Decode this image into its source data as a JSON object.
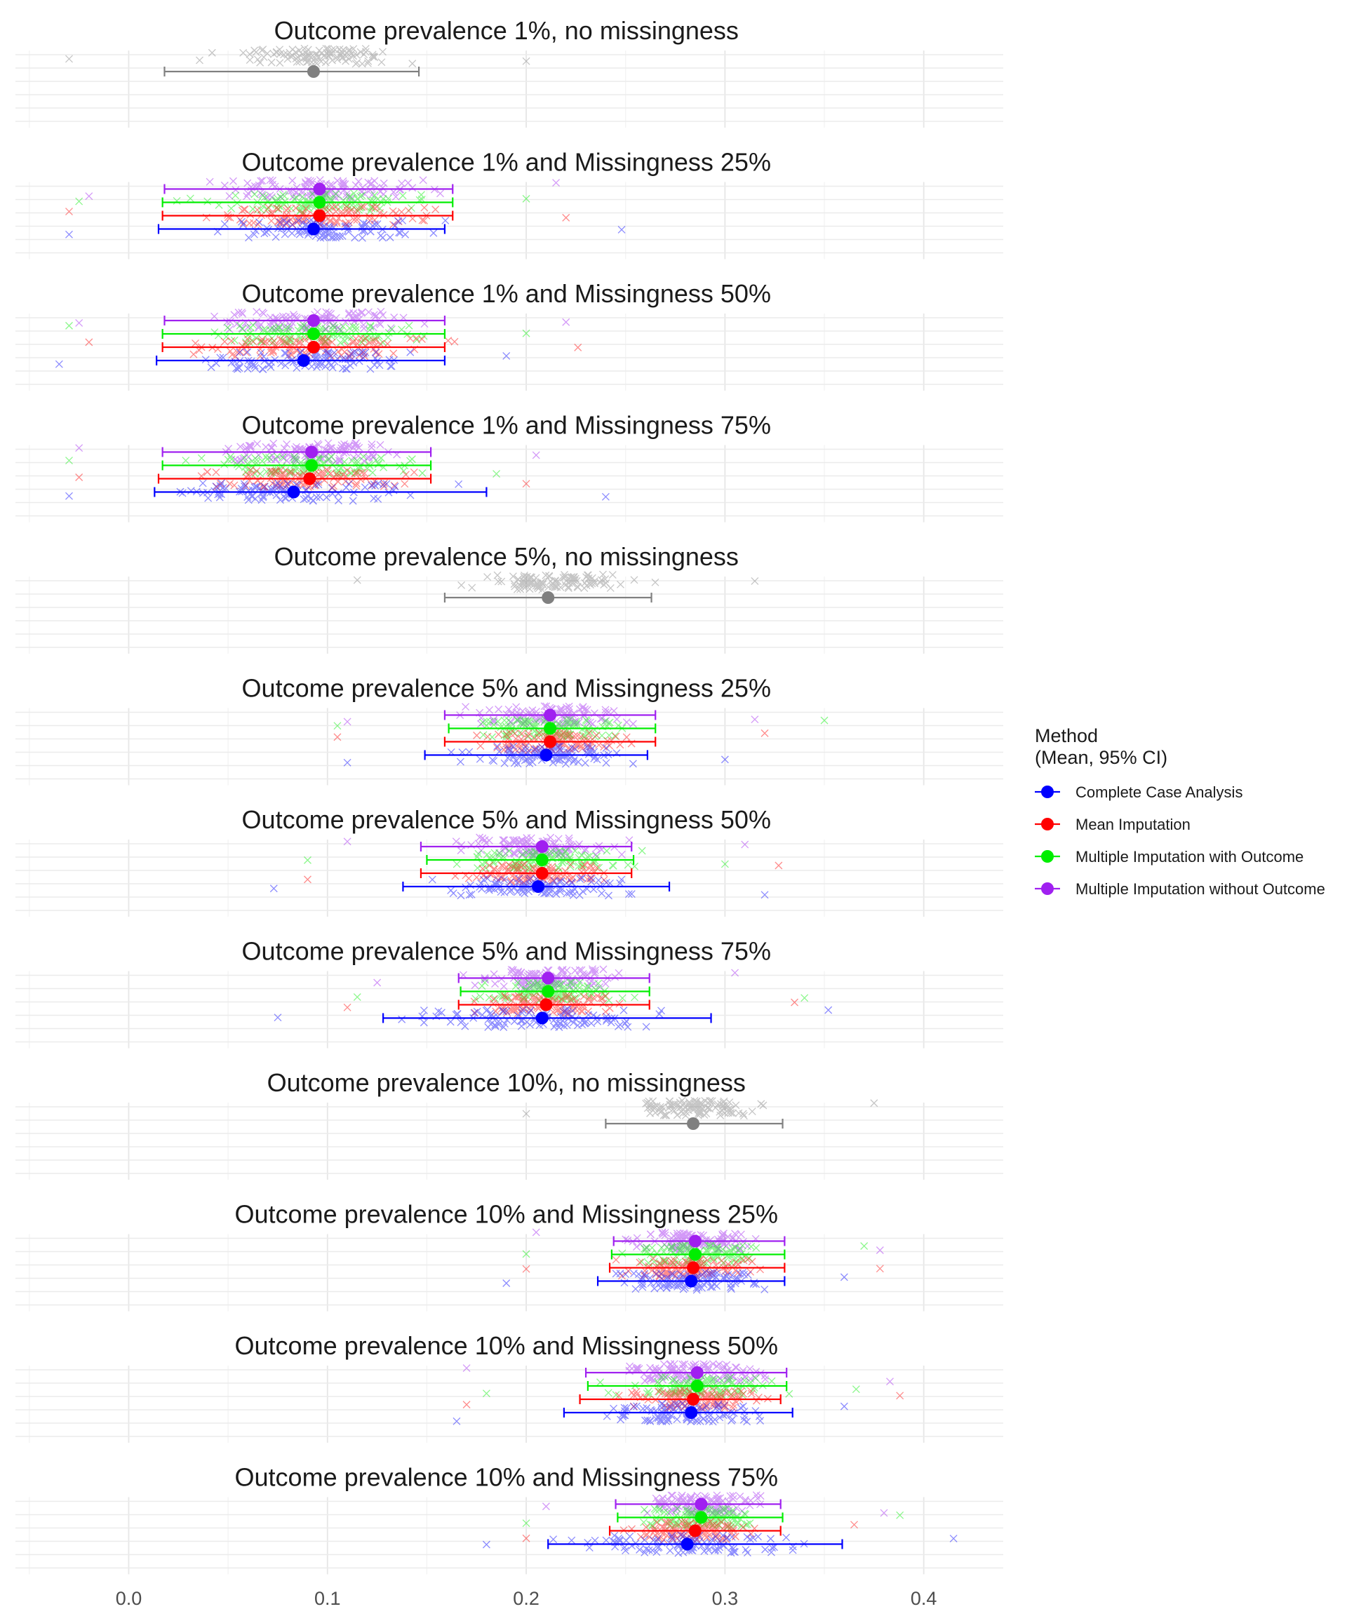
{
  "chart_data": {
    "type": "scatter",
    "subtype": "faceted jittered points with mean and 95% CI error bars",
    "x_axis": {
      "ticks": [
        0.0,
        0.1,
        0.2,
        0.3,
        0.4
      ],
      "tick_labels": [
        "0.0",
        "0.1",
        "0.2",
        "0.3",
        "0.4"
      ],
      "range": [
        -0.057,
        0.44
      ]
    },
    "grid": true,
    "legend": {
      "title_line1": "Method",
      "title_line2": "(Mean, 95% CI)",
      "position": "right",
      "entries": [
        {
          "label": "Complete Case Analysis",
          "color": "#0000ff"
        },
        {
          "label": "Mean Imputation",
          "color": "#ff0000"
        },
        {
          "label": "Multiple Imputation with Outcome",
          "color": "#00ee00"
        },
        {
          "label": "Multiple Imputation without Outcome",
          "color": "#a020f0"
        }
      ]
    },
    "colors": {
      "no_missing": "#808080",
      "cca": "#0000ff",
      "mean": "#ff0000",
      "mi_with": "#00ee00",
      "mi_without": "#a020f0"
    },
    "panels": [
      {
        "title": "Outcome prevalence 1%, no missingness",
        "kind": "single",
        "series": [
          {
            "key": "no_missing",
            "mean": 0.093,
            "ci": [
              0.018,
              0.146
            ],
            "scatter": [
              -0.03,
              0.2
            ]
          }
        ]
      },
      {
        "title": "Outcome prevalence 1% and Missingness 25%",
        "kind": "methods",
        "series": [
          {
            "key": "mi_without",
            "mean": 0.096,
            "ci": [
              0.018,
              0.163
            ],
            "scatter": [
              -0.02,
              0.215
            ]
          },
          {
            "key": "mi_with",
            "mean": 0.096,
            "ci": [
              0.017,
              0.163
            ],
            "scatter": [
              -0.025,
              0.2
            ]
          },
          {
            "key": "mean",
            "mean": 0.096,
            "ci": [
              0.017,
              0.163
            ],
            "scatter": [
              -0.03,
              0.22
            ]
          },
          {
            "key": "cca",
            "mean": 0.093,
            "ci": [
              0.015,
              0.159
            ],
            "scatter": [
              -0.03,
              0.248
            ]
          }
        ]
      },
      {
        "title": "Outcome prevalence 1% and Missingness 50%",
        "kind": "methods",
        "series": [
          {
            "key": "mi_without",
            "mean": 0.093,
            "ci": [
              0.018,
              0.159
            ],
            "scatter": [
              -0.025,
              0.22
            ]
          },
          {
            "key": "mi_with",
            "mean": 0.093,
            "ci": [
              0.017,
              0.159
            ],
            "scatter": [
              -0.03,
              0.2
            ]
          },
          {
            "key": "mean",
            "mean": 0.093,
            "ci": [
              0.017,
              0.159
            ],
            "scatter": [
              -0.02,
              0.226
            ]
          },
          {
            "key": "cca",
            "mean": 0.088,
            "ci": [
              0.014,
              0.159
            ],
            "scatter": [
              -0.035,
              0.19
            ]
          }
        ]
      },
      {
        "title": "Outcome prevalence 1% and Missingness 75%",
        "kind": "methods",
        "series": [
          {
            "key": "mi_without",
            "mean": 0.092,
            "ci": [
              0.017,
              0.152
            ],
            "scatter": [
              -0.025,
              0.205
            ]
          },
          {
            "key": "mi_with",
            "mean": 0.092,
            "ci": [
              0.017,
              0.152
            ],
            "scatter": [
              -0.03,
              0.185
            ]
          },
          {
            "key": "mean",
            "mean": 0.091,
            "ci": [
              0.015,
              0.152
            ],
            "scatter": [
              -0.025,
              0.2
            ]
          },
          {
            "key": "cca",
            "mean": 0.083,
            "ci": [
              0.013,
              0.18
            ],
            "scatter": [
              -0.03,
              0.24
            ]
          }
        ]
      },
      {
        "title": "Outcome prevalence 5%, no missingness",
        "kind": "single",
        "series": [
          {
            "key": "no_missing",
            "mean": 0.211,
            "ci": [
              0.159,
              0.263
            ],
            "scatter": [
              0.115,
              0.315
            ]
          }
        ]
      },
      {
        "title": "Outcome prevalence 5% and Missingness 25%",
        "kind": "methods",
        "series": [
          {
            "key": "mi_without",
            "mean": 0.212,
            "ci": [
              0.159,
              0.265
            ],
            "scatter": [
              0.11,
              0.315
            ]
          },
          {
            "key": "mi_with",
            "mean": 0.212,
            "ci": [
              0.161,
              0.265
            ],
            "scatter": [
              0.105,
              0.35
            ]
          },
          {
            "key": "mean",
            "mean": 0.212,
            "ci": [
              0.159,
              0.265
            ],
            "scatter": [
              0.105,
              0.32
            ]
          },
          {
            "key": "cca",
            "mean": 0.21,
            "ci": [
              0.149,
              0.261
            ],
            "scatter": [
              0.11,
              0.3
            ]
          }
        ]
      },
      {
        "title": "Outcome prevalence 5% and Missingness 50%",
        "kind": "methods",
        "series": [
          {
            "key": "mi_without",
            "mean": 0.208,
            "ci": [
              0.147,
              0.253
            ],
            "scatter": [
              0.11,
              0.31
            ]
          },
          {
            "key": "mi_with",
            "mean": 0.208,
            "ci": [
              0.15,
              0.254
            ],
            "scatter": [
              0.09,
              0.3
            ]
          },
          {
            "key": "mean",
            "mean": 0.208,
            "ci": [
              0.147,
              0.253
            ],
            "scatter": [
              0.09,
              0.327
            ]
          },
          {
            "key": "cca",
            "mean": 0.206,
            "ci": [
              0.138,
              0.272
            ],
            "scatter": [
              0.073,
              0.32
            ]
          }
        ]
      },
      {
        "title": "Outcome prevalence 5% and Missingness 75%",
        "kind": "methods",
        "series": [
          {
            "key": "mi_without",
            "mean": 0.211,
            "ci": [
              0.166,
              0.262
            ],
            "scatter": [
              0.125,
              0.305
            ]
          },
          {
            "key": "mi_with",
            "mean": 0.211,
            "ci": [
              0.167,
              0.262
            ],
            "scatter": [
              0.115,
              0.34
            ]
          },
          {
            "key": "mean",
            "mean": 0.21,
            "ci": [
              0.166,
              0.262
            ],
            "scatter": [
              0.11,
              0.335
            ]
          },
          {
            "key": "cca",
            "mean": 0.208,
            "ci": [
              0.128,
              0.293
            ],
            "scatter": [
              0.075,
              0.352
            ]
          }
        ]
      },
      {
        "title": "Outcome prevalence 10%, no missingness",
        "kind": "single",
        "series": [
          {
            "key": "no_missing",
            "mean": 0.284,
            "ci": [
              0.24,
              0.329
            ],
            "scatter": [
              0.2,
              0.375
            ]
          }
        ]
      },
      {
        "title": "Outcome prevalence 10% and Missingness 25%",
        "kind": "methods",
        "series": [
          {
            "key": "mi_without",
            "mean": 0.285,
            "ci": [
              0.244,
              0.33
            ],
            "scatter": [
              0.205,
              0.378
            ]
          },
          {
            "key": "mi_with",
            "mean": 0.285,
            "ci": [
              0.243,
              0.33
            ],
            "scatter": [
              0.2,
              0.37
            ]
          },
          {
            "key": "mean",
            "mean": 0.284,
            "ci": [
              0.242,
              0.33
            ],
            "scatter": [
              0.2,
              0.378
            ]
          },
          {
            "key": "cca",
            "mean": 0.283,
            "ci": [
              0.236,
              0.33
            ],
            "scatter": [
              0.19,
              0.36
            ]
          }
        ]
      },
      {
        "title": "Outcome prevalence 10% and Missingness 50%",
        "kind": "methods",
        "series": [
          {
            "key": "mi_without",
            "mean": 0.286,
            "ci": [
              0.23,
              0.331
            ],
            "scatter": [
              0.17,
              0.383
            ]
          },
          {
            "key": "mi_with",
            "mean": 0.286,
            "ci": [
              0.231,
              0.331
            ],
            "scatter": [
              0.18,
              0.366
            ]
          },
          {
            "key": "mean",
            "mean": 0.284,
            "ci": [
              0.227,
              0.328
            ],
            "scatter": [
              0.17,
              0.388
            ]
          },
          {
            "key": "cca",
            "mean": 0.283,
            "ci": [
              0.219,
              0.334
            ],
            "scatter": [
              0.165,
              0.36
            ]
          }
        ]
      },
      {
        "title": "Outcome prevalence 10% and Missingness 75%",
        "kind": "methods",
        "series": [
          {
            "key": "mi_without",
            "mean": 0.288,
            "ci": [
              0.245,
              0.328
            ],
            "scatter": [
              0.21,
              0.38
            ]
          },
          {
            "key": "mi_with",
            "mean": 0.288,
            "ci": [
              0.246,
              0.329
            ],
            "scatter": [
              0.2,
              0.388
            ]
          },
          {
            "key": "mean",
            "mean": 0.285,
            "ci": [
              0.242,
              0.328
            ],
            "scatter": [
              0.2,
              0.365
            ]
          },
          {
            "key": "cca",
            "mean": 0.281,
            "ci": [
              0.211,
              0.359
            ],
            "scatter": [
              0.18,
              0.415
            ]
          }
        ]
      }
    ]
  }
}
